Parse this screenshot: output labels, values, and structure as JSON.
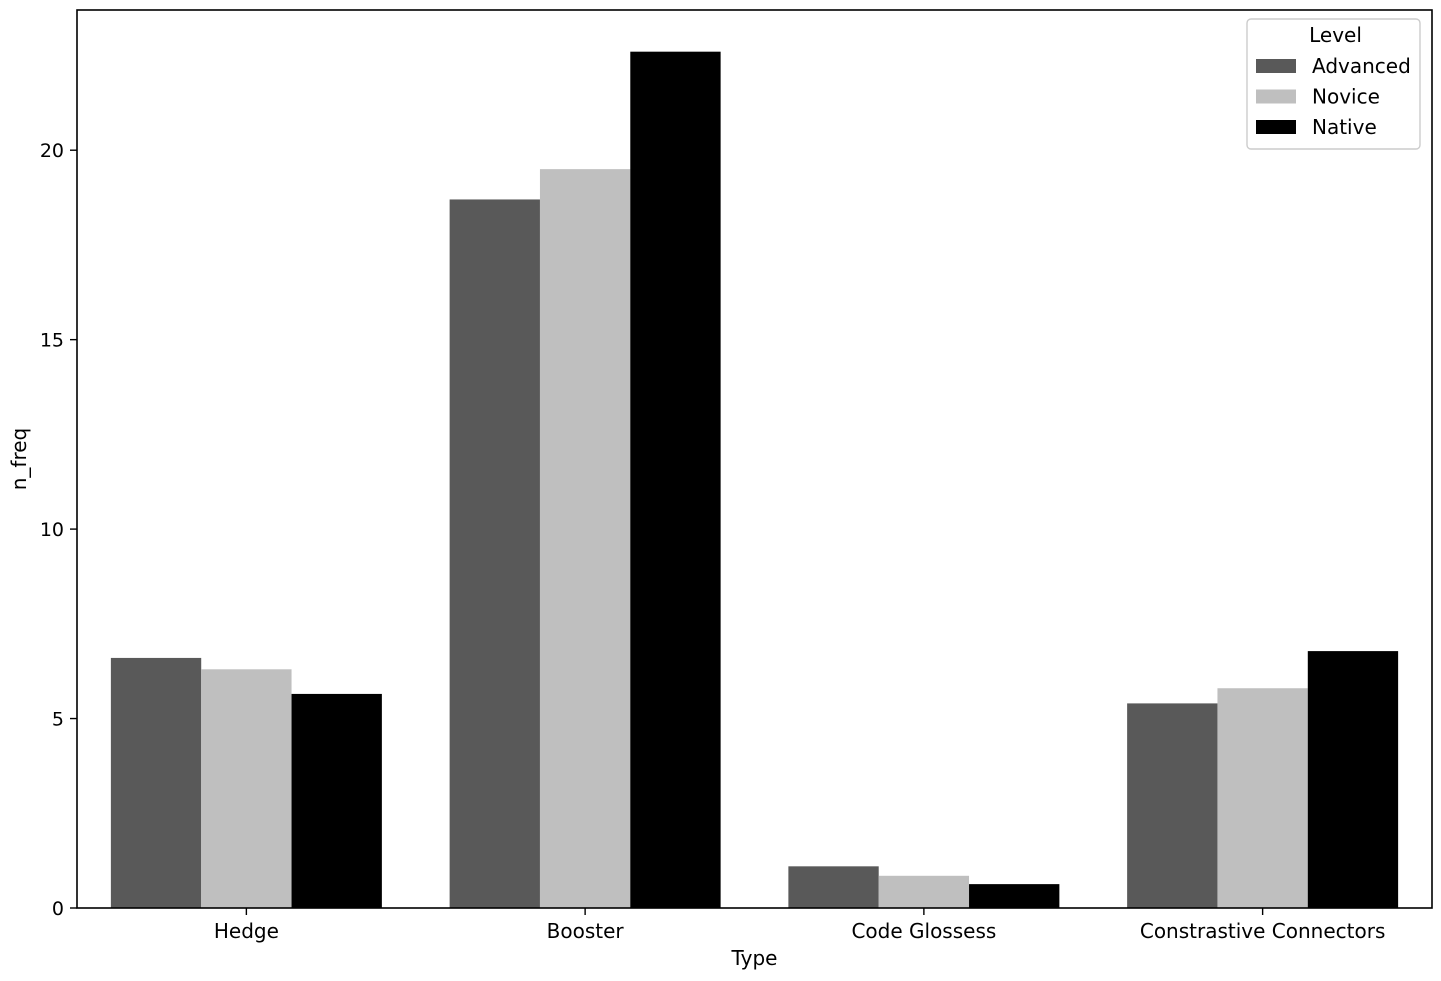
{
  "chart_data": {
    "type": "bar",
    "title": "",
    "xlabel": "Type",
    "ylabel": "n_freq",
    "categories": [
      "Hedge",
      "Booster",
      "Code Glossess",
      "Constrastive Connectors"
    ],
    "series": [
      {
        "name": "Advanced",
        "color": "#595959",
        "values": [
          6.6,
          18.7,
          1.1,
          5.4
        ]
      },
      {
        "name": "Novice",
        "color": "#bfbfbf",
        "values": [
          6.3,
          19.5,
          0.85,
          5.8
        ]
      },
      {
        "name": "Native",
        "color": "#000000",
        "values": [
          5.65,
          22.6,
          0.63,
          6.78
        ]
      }
    ],
    "ylim": [
      0,
      23.7
    ],
    "yticks": [
      0,
      5,
      10,
      15,
      20
    ],
    "grid": false,
    "legend": {
      "title": "Level",
      "placement": "top-right"
    }
  }
}
